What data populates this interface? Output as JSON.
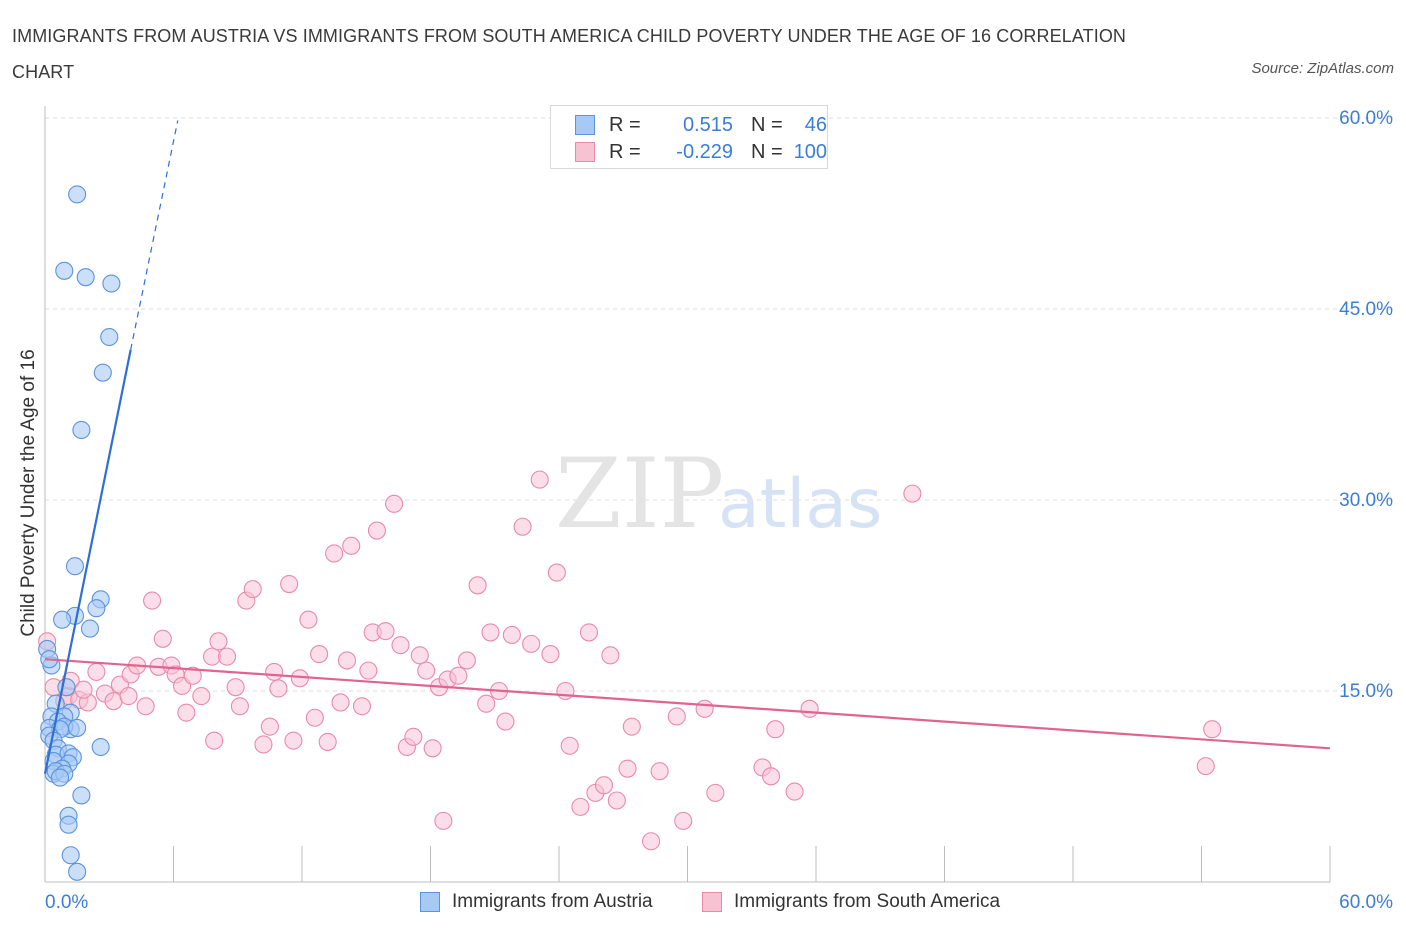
{
  "header": {
    "title": "IMMIGRANTS FROM AUSTRIA VS IMMIGRANTS FROM SOUTH AMERICA CHILD POVERTY UNDER THE AGE OF 16 CORRELATION CHART",
    "source": "Source: ZipAtlas.com"
  },
  "watermark": {
    "zip": "ZIP",
    "atlas": "atlas"
  },
  "legend": {
    "austria": {
      "r_label": "R =",
      "r_value": "0.515",
      "n_label": "N =",
      "n_value": "46"
    },
    "south_america": {
      "r_label": "R =",
      "r_value": "-0.229",
      "n_label": "N =",
      "n_value": "100"
    }
  },
  "bottom_legend": {
    "austria": "Immigrants from Austria",
    "south_america": "Immigrants from South America"
  },
  "colors": {
    "austria_fill": "#a9c9f5",
    "austria_stroke": "#5b93de",
    "austria_line": "#2d6fd6",
    "south_america_fill": "#f7c3d3",
    "south_america_stroke": "#e98aa9",
    "south_america_line": "#e0648e",
    "axis_label": "#3b7dd8",
    "grid": "#dddddd"
  },
  "chart_data": {
    "type": "scatter",
    "title": "IMMIGRANTS FROM AUSTRIA VS IMMIGRANTS FROM SOUTH AMERICA CHILD POVERTY UNDER THE AGE OF 16 CORRELATION CHART",
    "xlabel": "",
    "ylabel": "Child Poverty Under the Age of 16",
    "xlim": [
      0,
      60
    ],
    "ylim": [
      0,
      60
    ],
    "x_tick_labels": [
      "0.0%",
      "60.0%"
    ],
    "y_ticks": [
      15,
      30,
      45,
      60
    ],
    "y_tick_labels": [
      "15.0%",
      "30.0%",
      "45.0%",
      "60.0%"
    ],
    "grid": true,
    "legend_position": "top-center",
    "series": [
      {
        "name": "Immigrants from Austria",
        "points": [
          [
            1.5,
            54.0
          ],
          [
            0.9,
            48.0
          ],
          [
            1.9,
            47.5
          ],
          [
            3.1,
            47.0
          ],
          [
            3.0,
            42.8
          ],
          [
            2.7,
            40.0
          ],
          [
            1.7,
            35.5
          ],
          [
            1.4,
            24.8
          ],
          [
            2.6,
            22.2
          ],
          [
            2.4,
            21.5
          ],
          [
            1.4,
            20.9
          ],
          [
            0.8,
            20.6
          ],
          [
            2.1,
            19.9
          ],
          [
            0.1,
            18.3
          ],
          [
            0.3,
            17.0
          ],
          [
            1.0,
            15.3
          ],
          [
            0.5,
            14.0
          ],
          [
            1.2,
            13.3
          ],
          [
            0.3,
            13.0
          ],
          [
            0.9,
            13.0
          ],
          [
            0.6,
            12.6
          ],
          [
            0.2,
            12.1
          ],
          [
            1.2,
            12.0
          ],
          [
            0.9,
            12.2
          ],
          [
            0.7,
            12.0
          ],
          [
            1.5,
            12.1
          ],
          [
            0.2,
            11.5
          ],
          [
            0.4,
            11.1
          ],
          [
            0.6,
            10.5
          ],
          [
            0.5,
            10.0
          ],
          [
            2.6,
            10.6
          ],
          [
            1.1,
            10.1
          ],
          [
            1.3,
            9.8
          ],
          [
            0.4,
            9.5
          ],
          [
            1.1,
            9.3
          ],
          [
            0.8,
            8.9
          ],
          [
            0.4,
            8.5
          ],
          [
            0.5,
            8.7
          ],
          [
            0.9,
            8.5
          ],
          [
            0.7,
            8.2
          ],
          [
            1.7,
            6.8
          ],
          [
            1.1,
            5.2
          ],
          [
            1.1,
            4.5
          ],
          [
            1.2,
            2.1
          ],
          [
            1.5,
            0.8
          ],
          [
            0.2,
            17.5
          ]
        ],
        "trend": {
          "x": [
            0.0,
            4.0
          ],
          "y": [
            8.5,
            41.8
          ]
        },
        "trend_extension": {
          "x": [
            4.0,
            6.2
          ],
          "y": [
            41.8,
            59.8
          ]
        }
      },
      {
        "name": "Immigrants from South America",
        "points": [
          [
            0.1,
            18.9
          ],
          [
            0.4,
            15.3
          ],
          [
            0.9,
            14.2
          ],
          [
            1.1,
            14.6
          ],
          [
            1.2,
            15.8
          ],
          [
            1.6,
            14.3
          ],
          [
            2.0,
            14.1
          ],
          [
            2.4,
            16.5
          ],
          [
            2.8,
            14.8
          ],
          [
            3.2,
            14.2
          ],
          [
            3.5,
            15.5
          ],
          [
            3.9,
            14.6
          ],
          [
            4.0,
            16.3
          ],
          [
            4.3,
            17.0
          ],
          [
            4.7,
            13.8
          ],
          [
            5.0,
            22.1
          ],
          [
            5.3,
            16.9
          ],
          [
            5.5,
            19.1
          ],
          [
            5.9,
            17.0
          ],
          [
            6.1,
            16.3
          ],
          [
            6.4,
            15.4
          ],
          [
            6.6,
            13.3
          ],
          [
            6.9,
            16.2
          ],
          [
            7.3,
            14.6
          ],
          [
            7.8,
            17.7
          ],
          [
            7.9,
            11.1
          ],
          [
            8.1,
            18.9
          ],
          [
            8.5,
            17.7
          ],
          [
            8.9,
            15.3
          ],
          [
            9.1,
            13.8
          ],
          [
            9.4,
            22.1
          ],
          [
            9.7,
            23.0
          ],
          [
            10.2,
            10.8
          ],
          [
            10.5,
            12.2
          ],
          [
            10.7,
            16.5
          ],
          [
            10.9,
            15.2
          ],
          [
            11.4,
            23.4
          ],
          [
            11.6,
            11.1
          ],
          [
            11.9,
            16.0
          ],
          [
            12.3,
            20.6
          ],
          [
            12.6,
            12.9
          ],
          [
            12.8,
            17.9
          ],
          [
            13.2,
            11.0
          ],
          [
            13.5,
            25.8
          ],
          [
            13.8,
            14.1
          ],
          [
            14.1,
            17.4
          ],
          [
            14.3,
            26.4
          ],
          [
            14.8,
            13.8
          ],
          [
            15.1,
            16.6
          ],
          [
            15.3,
            19.6
          ],
          [
            15.5,
            27.6
          ],
          [
            15.9,
            19.7
          ],
          [
            16.3,
            29.7
          ],
          [
            16.6,
            18.6
          ],
          [
            16.9,
            10.6
          ],
          [
            17.2,
            11.4
          ],
          [
            17.5,
            17.8
          ],
          [
            17.8,
            16.6
          ],
          [
            18.1,
            10.5
          ],
          [
            18.4,
            15.3
          ],
          [
            18.6,
            4.8
          ],
          [
            18.8,
            15.9
          ],
          [
            19.3,
            16.2
          ],
          [
            19.7,
            17.4
          ],
          [
            20.2,
            23.3
          ],
          [
            20.6,
            14.0
          ],
          [
            20.8,
            19.6
          ],
          [
            21.2,
            15.0
          ],
          [
            21.5,
            12.6
          ],
          [
            21.8,
            19.4
          ],
          [
            22.3,
            27.9
          ],
          [
            22.7,
            18.7
          ],
          [
            23.1,
            31.6
          ],
          [
            23.6,
            17.9
          ],
          [
            23.9,
            24.3
          ],
          [
            24.3,
            15.0
          ],
          [
            24.5,
            10.7
          ],
          [
            25.0,
            5.9
          ],
          [
            25.4,
            19.6
          ],
          [
            25.7,
            7.0
          ],
          [
            26.1,
            7.6
          ],
          [
            26.4,
            17.8
          ],
          [
            26.7,
            6.4
          ],
          [
            27.2,
            8.9
          ],
          [
            27.4,
            12.2
          ],
          [
            28.3,
            3.2
          ],
          [
            28.7,
            8.7
          ],
          [
            29.5,
            13.0
          ],
          [
            29.8,
            4.8
          ],
          [
            30.8,
            13.6
          ],
          [
            31.3,
            7.0
          ],
          [
            33.5,
            9.0
          ],
          [
            33.9,
            8.3
          ],
          [
            34.1,
            12.0
          ],
          [
            35.0,
            7.1
          ],
          [
            35.7,
            13.6
          ],
          [
            40.5,
            30.5
          ],
          [
            54.5,
            12.0
          ],
          [
            54.2,
            9.1
          ],
          [
            1.8,
            15.1
          ]
        ],
        "trend": {
          "x": [
            0.0,
            60.0
          ],
          "y": [
            17.5,
            10.5
          ]
        }
      }
    ]
  }
}
